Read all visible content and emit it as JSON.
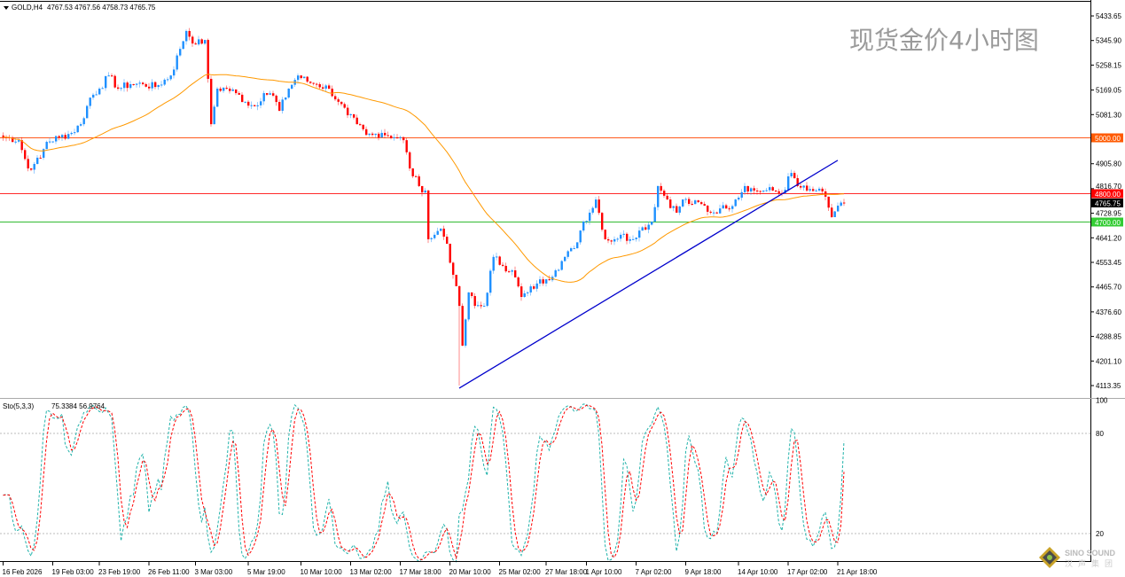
{
  "header": {
    "symbol_label": "GOLD,H4",
    "ohlc": "4767.53 4767.56 4758.73 4765.75"
  },
  "watermark": "现货金价4小时图",
  "indicator": {
    "label": "Sto(5,3,3)",
    "values": "75.3384 56.9764"
  },
  "logo": {
    "name": "SINO SOUND",
    "sub": "汉声集团"
  },
  "colors": {
    "bull": "#1e90ff",
    "bear": "#ff0000",
    "ma": "#ff9900",
    "trendline": "#0000cc",
    "line_5000": "#ff5a1e",
    "line_4800": "#ff2a2a",
    "line_4700": "#33bb33",
    "sto_main": "#20b2aa",
    "sto_signal": "#ff0000"
  },
  "chart_data": {
    "type": "candlestick",
    "instrument": "GOLD",
    "timeframe": "H4",
    "last_price": 4765.75,
    "price_ticks": [
      "5433.65",
      "5345.90",
      "5258.15",
      "5169.05",
      "5081.30",
      "4905.80",
      "4816.70",
      "4728.95",
      "4641.20",
      "4553.45",
      "4465.70",
      "4376.60",
      "4288.85",
      "4201.10",
      "4113.35"
    ],
    "ylim": [
      4113.35,
      5433.65
    ],
    "horizontal_lines": [
      {
        "price": 5000,
        "label": "5000.00",
        "color": "#ff5a1e",
        "label_bg": "#ff5a00"
      },
      {
        "price": 4800,
        "label": "4800.00",
        "color": "#ff2a2a",
        "label_bg": "#ff0000"
      },
      {
        "price": 4700,
        "label": "4700.00",
        "color": "#33bb33",
        "label_bg": "#33cc33"
      }
    ],
    "current_price_label": "4765.75",
    "trendline": {
      "from": {
        "bar": 147,
        "price": 4104
      },
      "to": {
        "bar": 269,
        "price": 4918
      }
    },
    "moving_average_period": 40,
    "bar_count": 272,
    "close_path": [
      [
        1,
        5000
      ],
      [
        5,
        4990
      ],
      [
        8,
        4889
      ],
      [
        10,
        4905
      ],
      [
        12,
        4927
      ],
      [
        14,
        4984
      ],
      [
        18,
        5000
      ],
      [
        22,
        5016
      ],
      [
        25,
        5047
      ],
      [
        28,
        5142
      ],
      [
        31,
        5174
      ],
      [
        34,
        5221
      ],
      [
        37,
        5174
      ],
      [
        41,
        5190
      ],
      [
        45,
        5190
      ],
      [
        49,
        5180
      ],
      [
        54,
        5221
      ],
      [
        57,
        5316
      ],
      [
        59,
        5380
      ],
      [
        62,
        5332
      ],
      [
        65,
        5348
      ],
      [
        67,
        5047
      ],
      [
        69,
        5174
      ],
      [
        72,
        5174
      ],
      [
        75,
        5158
      ],
      [
        78,
        5127
      ],
      [
        81,
        5111
      ],
      [
        84,
        5158
      ],
      [
        87,
        5149
      ],
      [
        89,
        5095
      ],
      [
        92,
        5174
      ],
      [
        95,
        5221
      ],
      [
        98,
        5199
      ],
      [
        101,
        5190
      ],
      [
        105,
        5174
      ],
      [
        108,
        5127
      ],
      [
        111,
        5079
      ],
      [
        114,
        5047
      ],
      [
        117,
        5009
      ],
      [
        119,
        5009
      ],
      [
        122,
        5016
      ],
      [
        127,
        5000
      ],
      [
        129,
        4990
      ],
      [
        131,
        4889
      ],
      [
        134,
        4826
      ],
      [
        136,
        4810
      ],
      [
        137,
        4636
      ],
      [
        139,
        4652
      ],
      [
        141,
        4674
      ],
      [
        143,
        4620
      ],
      [
        145,
        4509
      ],
      [
        147,
        4398
      ],
      [
        148,
        4256
      ],
      [
        150,
        4446
      ],
      [
        152,
        4398
      ],
      [
        155,
        4398
      ],
      [
        158,
        4573
      ],
      [
        161,
        4541
      ],
      [
        164,
        4525
      ],
      [
        167,
        4430
      ],
      [
        169,
        4446
      ],
      [
        172,
        4478
      ],
      [
        175,
        4493
      ],
      [
        178,
        4525
      ],
      [
        181,
        4573
      ],
      [
        184,
        4604
      ],
      [
        187,
        4699
      ],
      [
        189,
        4731
      ],
      [
        191,
        4778
      ],
      [
        194,
        4636
      ],
      [
        197,
        4636
      ],
      [
        199,
        4652
      ],
      [
        202,
        4636
      ],
      [
        205,
        4667
      ],
      [
        209,
        4699
      ],
      [
        211,
        4826
      ],
      [
        214,
        4778
      ],
      [
        217,
        4731
      ],
      [
        219,
        4778
      ],
      [
        222,
        4762
      ],
      [
        225,
        4762
      ],
      [
        228,
        4731
      ],
      [
        231,
        4746
      ],
      [
        233,
        4746
      ],
      [
        236,
        4778
      ],
      [
        239,
        4826
      ],
      [
        242,
        4810
      ],
      [
        245,
        4810
      ],
      [
        248,
        4810
      ],
      [
        251,
        4800
      ],
      [
        254,
        4873
      ],
      [
        256,
        4826
      ],
      [
        259,
        4810
      ],
      [
        262,
        4810
      ],
      [
        265,
        4788
      ],
      [
        267,
        4715
      ],
      [
        269,
        4756
      ],
      [
        271,
        4766
      ]
    ],
    "period_low": {
      "bar": 147,
      "price": 4113.35
    },
    "x_ticks": [
      {
        "bar": 0,
        "label": "16 Feb 2026"
      },
      {
        "bar": 16,
        "label": "19 Feb 03:00"
      },
      {
        "bar": 31,
        "label": "23 Feb 19:00"
      },
      {
        "bar": 47,
        "label": "26 Feb 11:00"
      },
      {
        "bar": 62,
        "label": "3 Mar 03:00"
      },
      {
        "bar": 79,
        "label": "5 Mar 19:00"
      },
      {
        "bar": 96,
        "label": "10 Mar 10:00"
      },
      {
        "bar": 112,
        "label": "13 Mar 02:00"
      },
      {
        "bar": 128,
        "label": "17 Mar 18:00"
      },
      {
        "bar": 144,
        "label": "20 Mar 10:00"
      },
      {
        "bar": 160,
        "label": "25 Mar 02:00"
      },
      {
        "bar": 175,
        "label": "27 Mar 18:00"
      },
      {
        "bar": 188,
        "label": "1 Apr 10:00"
      },
      {
        "bar": 204,
        "label": "7 Apr 02:00"
      },
      {
        "bar": 220,
        "label": "9 Apr 18:00"
      },
      {
        "bar": 237,
        "label": "14 Apr 10:00"
      },
      {
        "bar": 253,
        "label": "17 Apr 02:00"
      },
      {
        "bar": 269,
        "label": "21 Apr 18:00"
      }
    ],
    "stochastic": {
      "k": 5,
      "d": 3,
      "slowing": 3,
      "main_last": 75.3384,
      "signal_last": 56.9764,
      "ticks": [
        "100",
        "80",
        "20"
      ],
      "levels": [
        80,
        20
      ],
      "ylim": [
        0,
        100
      ]
    }
  }
}
